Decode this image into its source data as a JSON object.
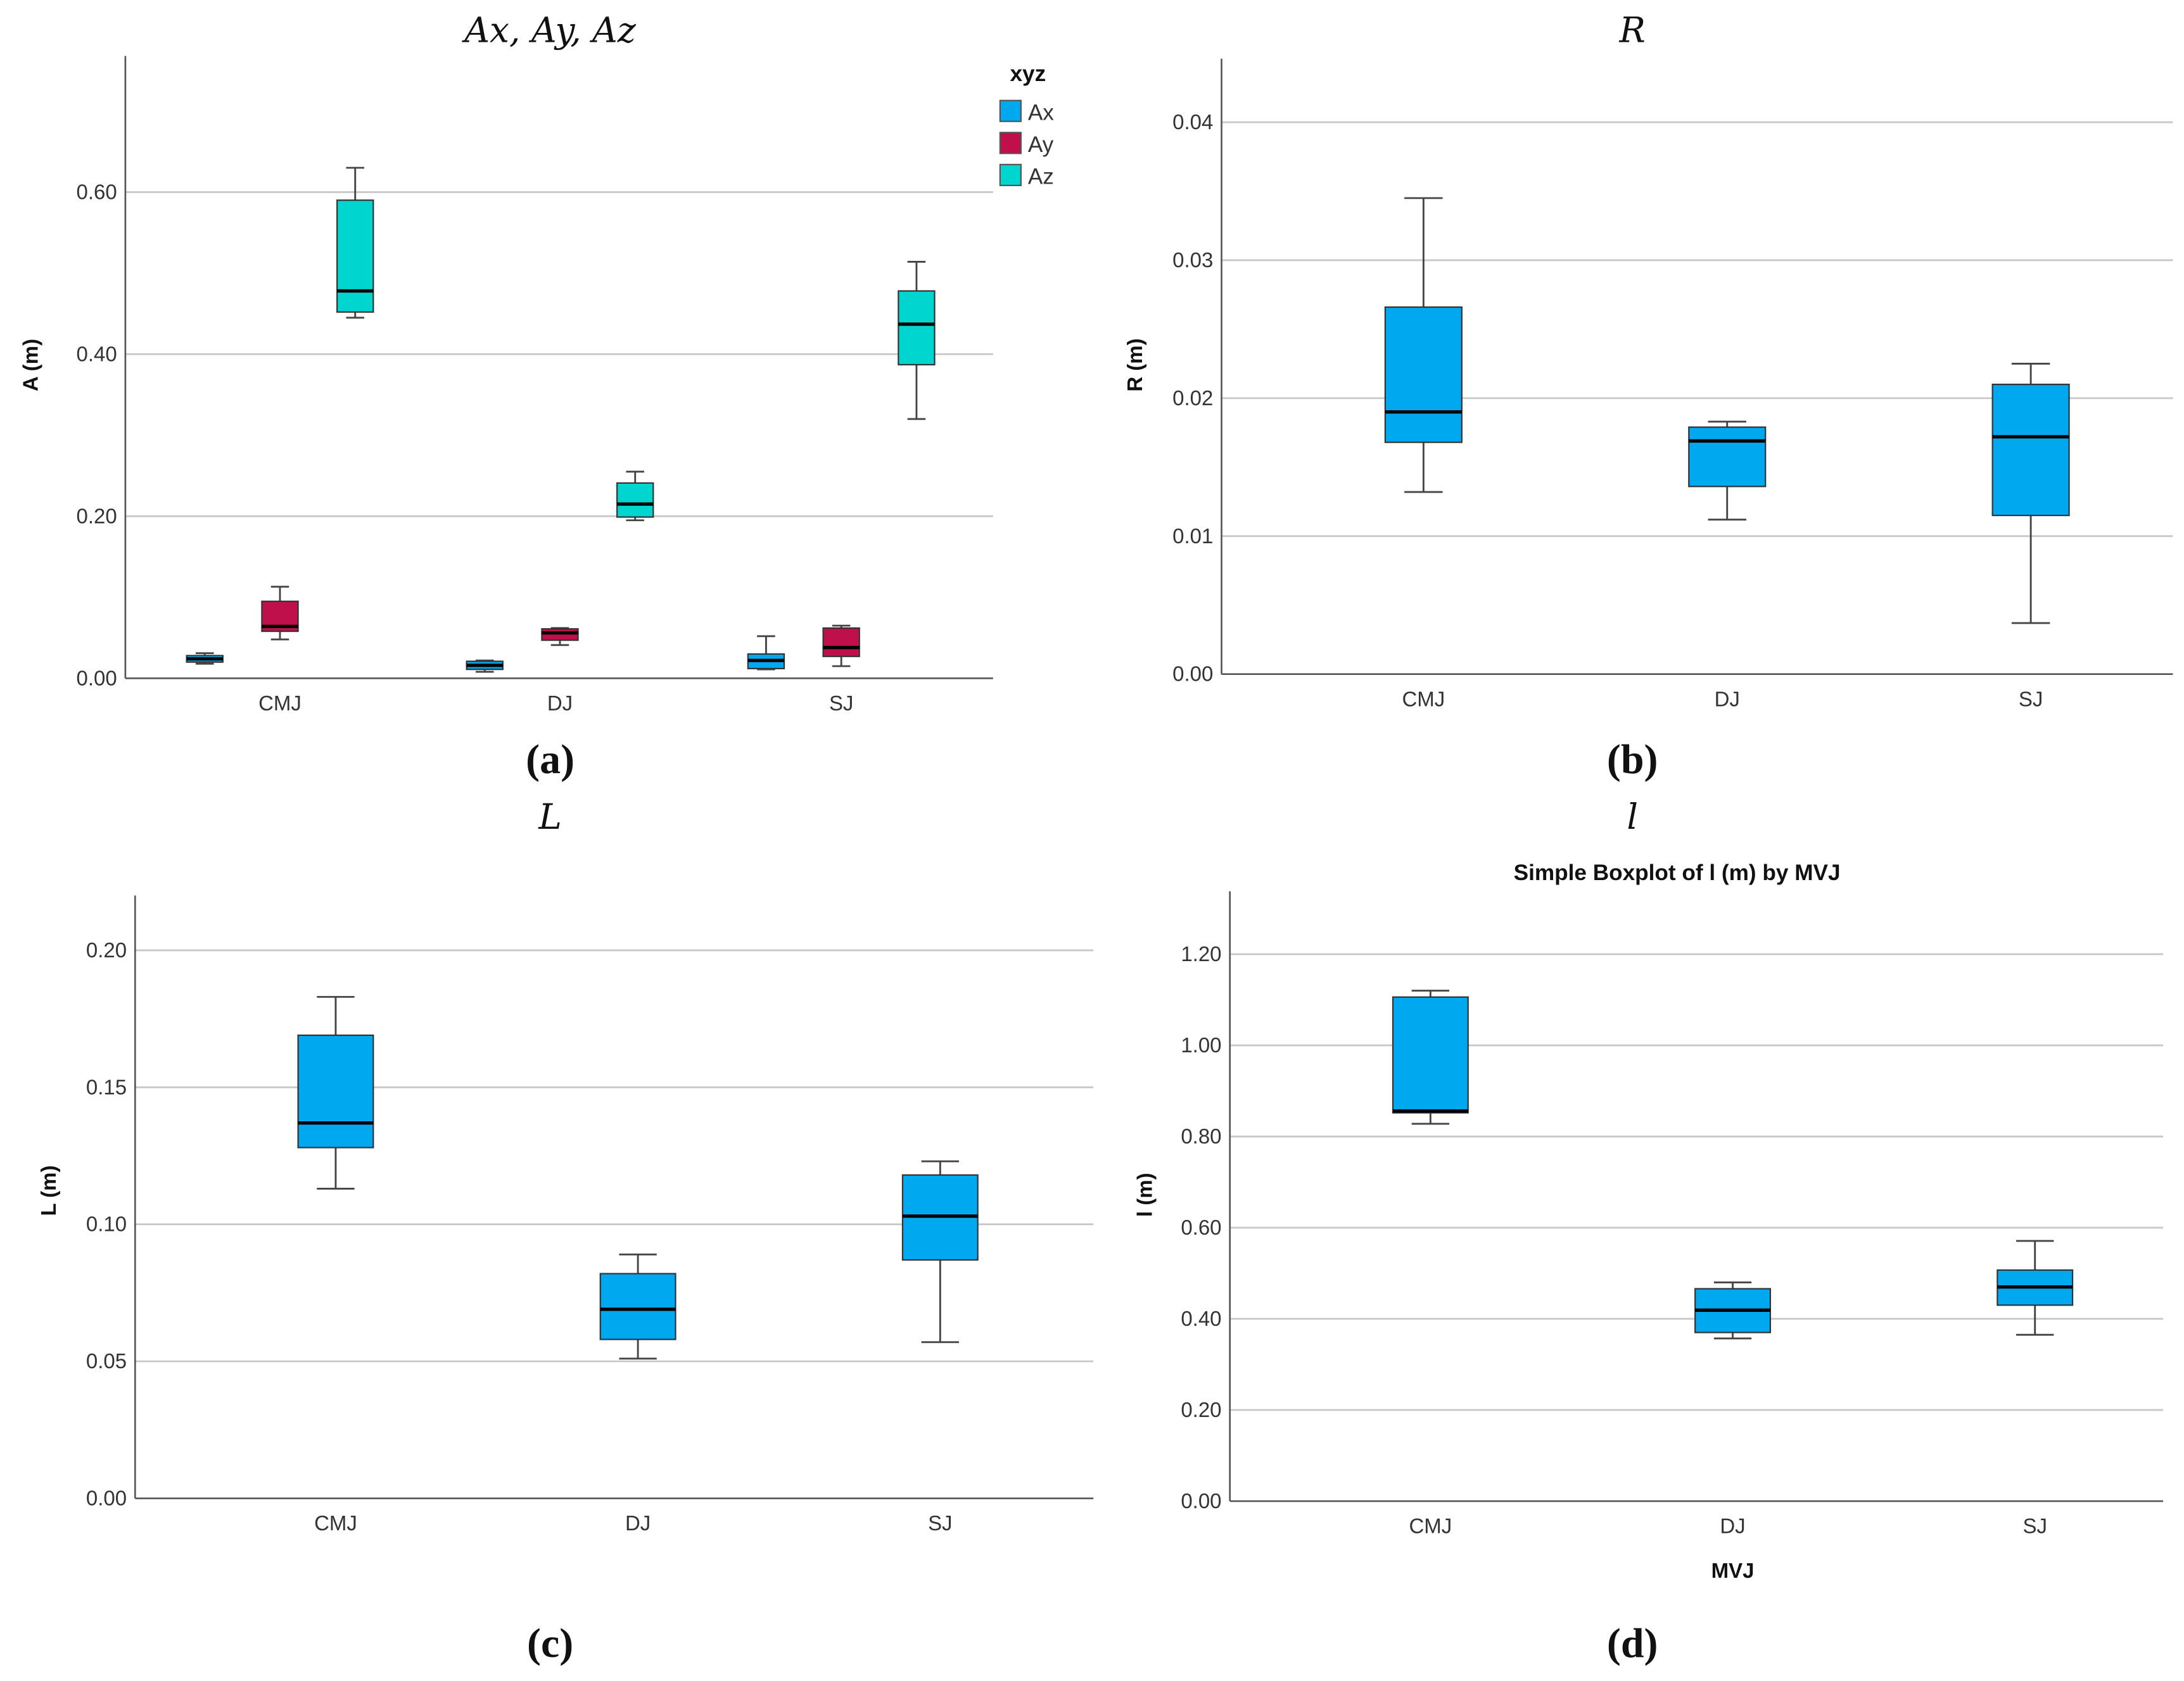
{
  "colors": {
    "Ax": "#00a8f0",
    "Ay": "#c0104c",
    "Az": "#00d6cf",
    "single": "#00a8f0"
  },
  "chart_data": [
    {
      "type": "boxplot",
      "panel_label": "(a)",
      "title": "Ax, Ay, Az",
      "ylabel": "A (m)",
      "xlabel": "",
      "categories": [
        "CMJ",
        "DJ",
        "SJ"
      ],
      "yticks": [
        "0.00",
        "0.20",
        "0.40",
        "0.60"
      ],
      "ytick_values": [
        0,
        0.2,
        0.4,
        0.6
      ],
      "ylim": [
        0,
        0.768
      ],
      "grid": true,
      "legend": {
        "title": "xyz",
        "position": "top-right",
        "entries": [
          "Ax",
          "Ay",
          "Az"
        ]
      },
      "series": [
        {
          "name": "Ax",
          "boxes": [
            {
              "min": 0.018,
              "q1": 0.02,
              "median": 0.024,
              "q3": 0.028,
              "max": 0.031
            },
            {
              "min": 0.008,
              "q1": 0.011,
              "median": 0.016,
              "q3": 0.021,
              "max": 0.022
            },
            {
              "min": 0.011,
              "q1": 0.012,
              "median": 0.022,
              "q3": 0.03,
              "max": 0.052
            }
          ]
        },
        {
          "name": "Ay",
          "boxes": [
            {
              "min": 0.048,
              "q1": 0.058,
              "median": 0.064,
              "q3": 0.095,
              "max": 0.113
            },
            {
              "min": 0.041,
              "q1": 0.047,
              "median": 0.056,
              "q3": 0.061,
              "max": 0.062
            },
            {
              "min": 0.015,
              "q1": 0.027,
              "median": 0.038,
              "q3": 0.062,
              "max": 0.065
            }
          ]
        },
        {
          "name": "Az",
          "boxes": [
            {
              "min": 0.445,
              "q1": 0.452,
              "median": 0.478,
              "q3": 0.59,
              "max": 0.63
            },
            {
              "min": 0.195,
              "q1": 0.199,
              "median": 0.215,
              "q3": 0.241,
              "max": 0.255
            },
            {
              "min": 0.32,
              "q1": 0.387,
              "median": 0.437,
              "q3": 0.478,
              "max": 0.514
            }
          ]
        }
      ]
    },
    {
      "type": "boxplot",
      "panel_label": "(b)",
      "title": "R",
      "ylabel": "R (m)",
      "xlabel": "",
      "categories": [
        "CMJ",
        "DJ",
        "SJ"
      ],
      "yticks": [
        "0.00",
        "0.01",
        "0.02",
        "0.03",
        "0.04"
      ],
      "ytick_values": [
        0,
        0.01,
        0.02,
        0.03,
        0.04
      ],
      "ylim": [
        0,
        0.0446
      ],
      "grid": true,
      "series": [
        {
          "name": "R",
          "boxes": [
            {
              "min": 0.0132,
              "q1": 0.0168,
              "median": 0.019,
              "q3": 0.0266,
              "max": 0.0345
            },
            {
              "min": 0.0112,
              "q1": 0.0136,
              "median": 0.0169,
              "q3": 0.0179,
              "max": 0.0183
            },
            {
              "min": 0.0037,
              "q1": 0.0115,
              "median": 0.0172,
              "q3": 0.021,
              "max": 0.0225
            }
          ]
        }
      ]
    },
    {
      "type": "boxplot",
      "panel_label": "(c)",
      "title": "L",
      "ylabel": "L (m)",
      "xlabel": "",
      "categories": [
        "CMJ",
        "DJ",
        "SJ"
      ],
      "yticks": [
        "0.00",
        "0.05",
        "0.10",
        "0.15",
        "0.20"
      ],
      "ytick_values": [
        0,
        0.05,
        0.1,
        0.15,
        0.2
      ],
      "ylim": [
        0,
        0.22
      ],
      "grid": true,
      "series": [
        {
          "name": "L",
          "boxes": [
            {
              "min": 0.113,
              "q1": 0.128,
              "median": 0.137,
              "q3": 0.169,
              "max": 0.183
            },
            {
              "min": 0.051,
              "q1": 0.058,
              "median": 0.069,
              "q3": 0.082,
              "max": 0.089
            },
            {
              "min": 0.057,
              "q1": 0.087,
              "median": 0.103,
              "q3": 0.118,
              "max": 0.123
            }
          ]
        }
      ]
    },
    {
      "type": "boxplot",
      "panel_label": "(d)",
      "title": "l",
      "subtitle": "Simple Boxplot of l (m) by MVJ",
      "ylabel": "l (m)",
      "xlabel": "MVJ",
      "categories": [
        "CMJ",
        "DJ",
        "SJ"
      ],
      "yticks": [
        "0.00",
        "0.20",
        "0.40",
        "0.60",
        "0.80",
        "1.00",
        "1.20"
      ],
      "ytick_values": [
        0,
        0.2,
        0.4,
        0.6,
        0.8,
        1.0,
        1.2
      ],
      "ylim": [
        0,
        1.338
      ],
      "grid": true,
      "series": [
        {
          "name": "l",
          "boxes": [
            {
              "min": 0.828,
              "q1": 0.852,
              "median": 0.856,
              "q3": 1.106,
              "max": 1.12
            },
            {
              "min": 0.357,
              "q1": 0.37,
              "median": 0.419,
              "q3": 0.466,
              "max": 0.48
            },
            {
              "min": 0.365,
              "q1": 0.43,
              "median": 0.47,
              "q3": 0.507,
              "max": 0.571
            }
          ]
        }
      ]
    }
  ]
}
